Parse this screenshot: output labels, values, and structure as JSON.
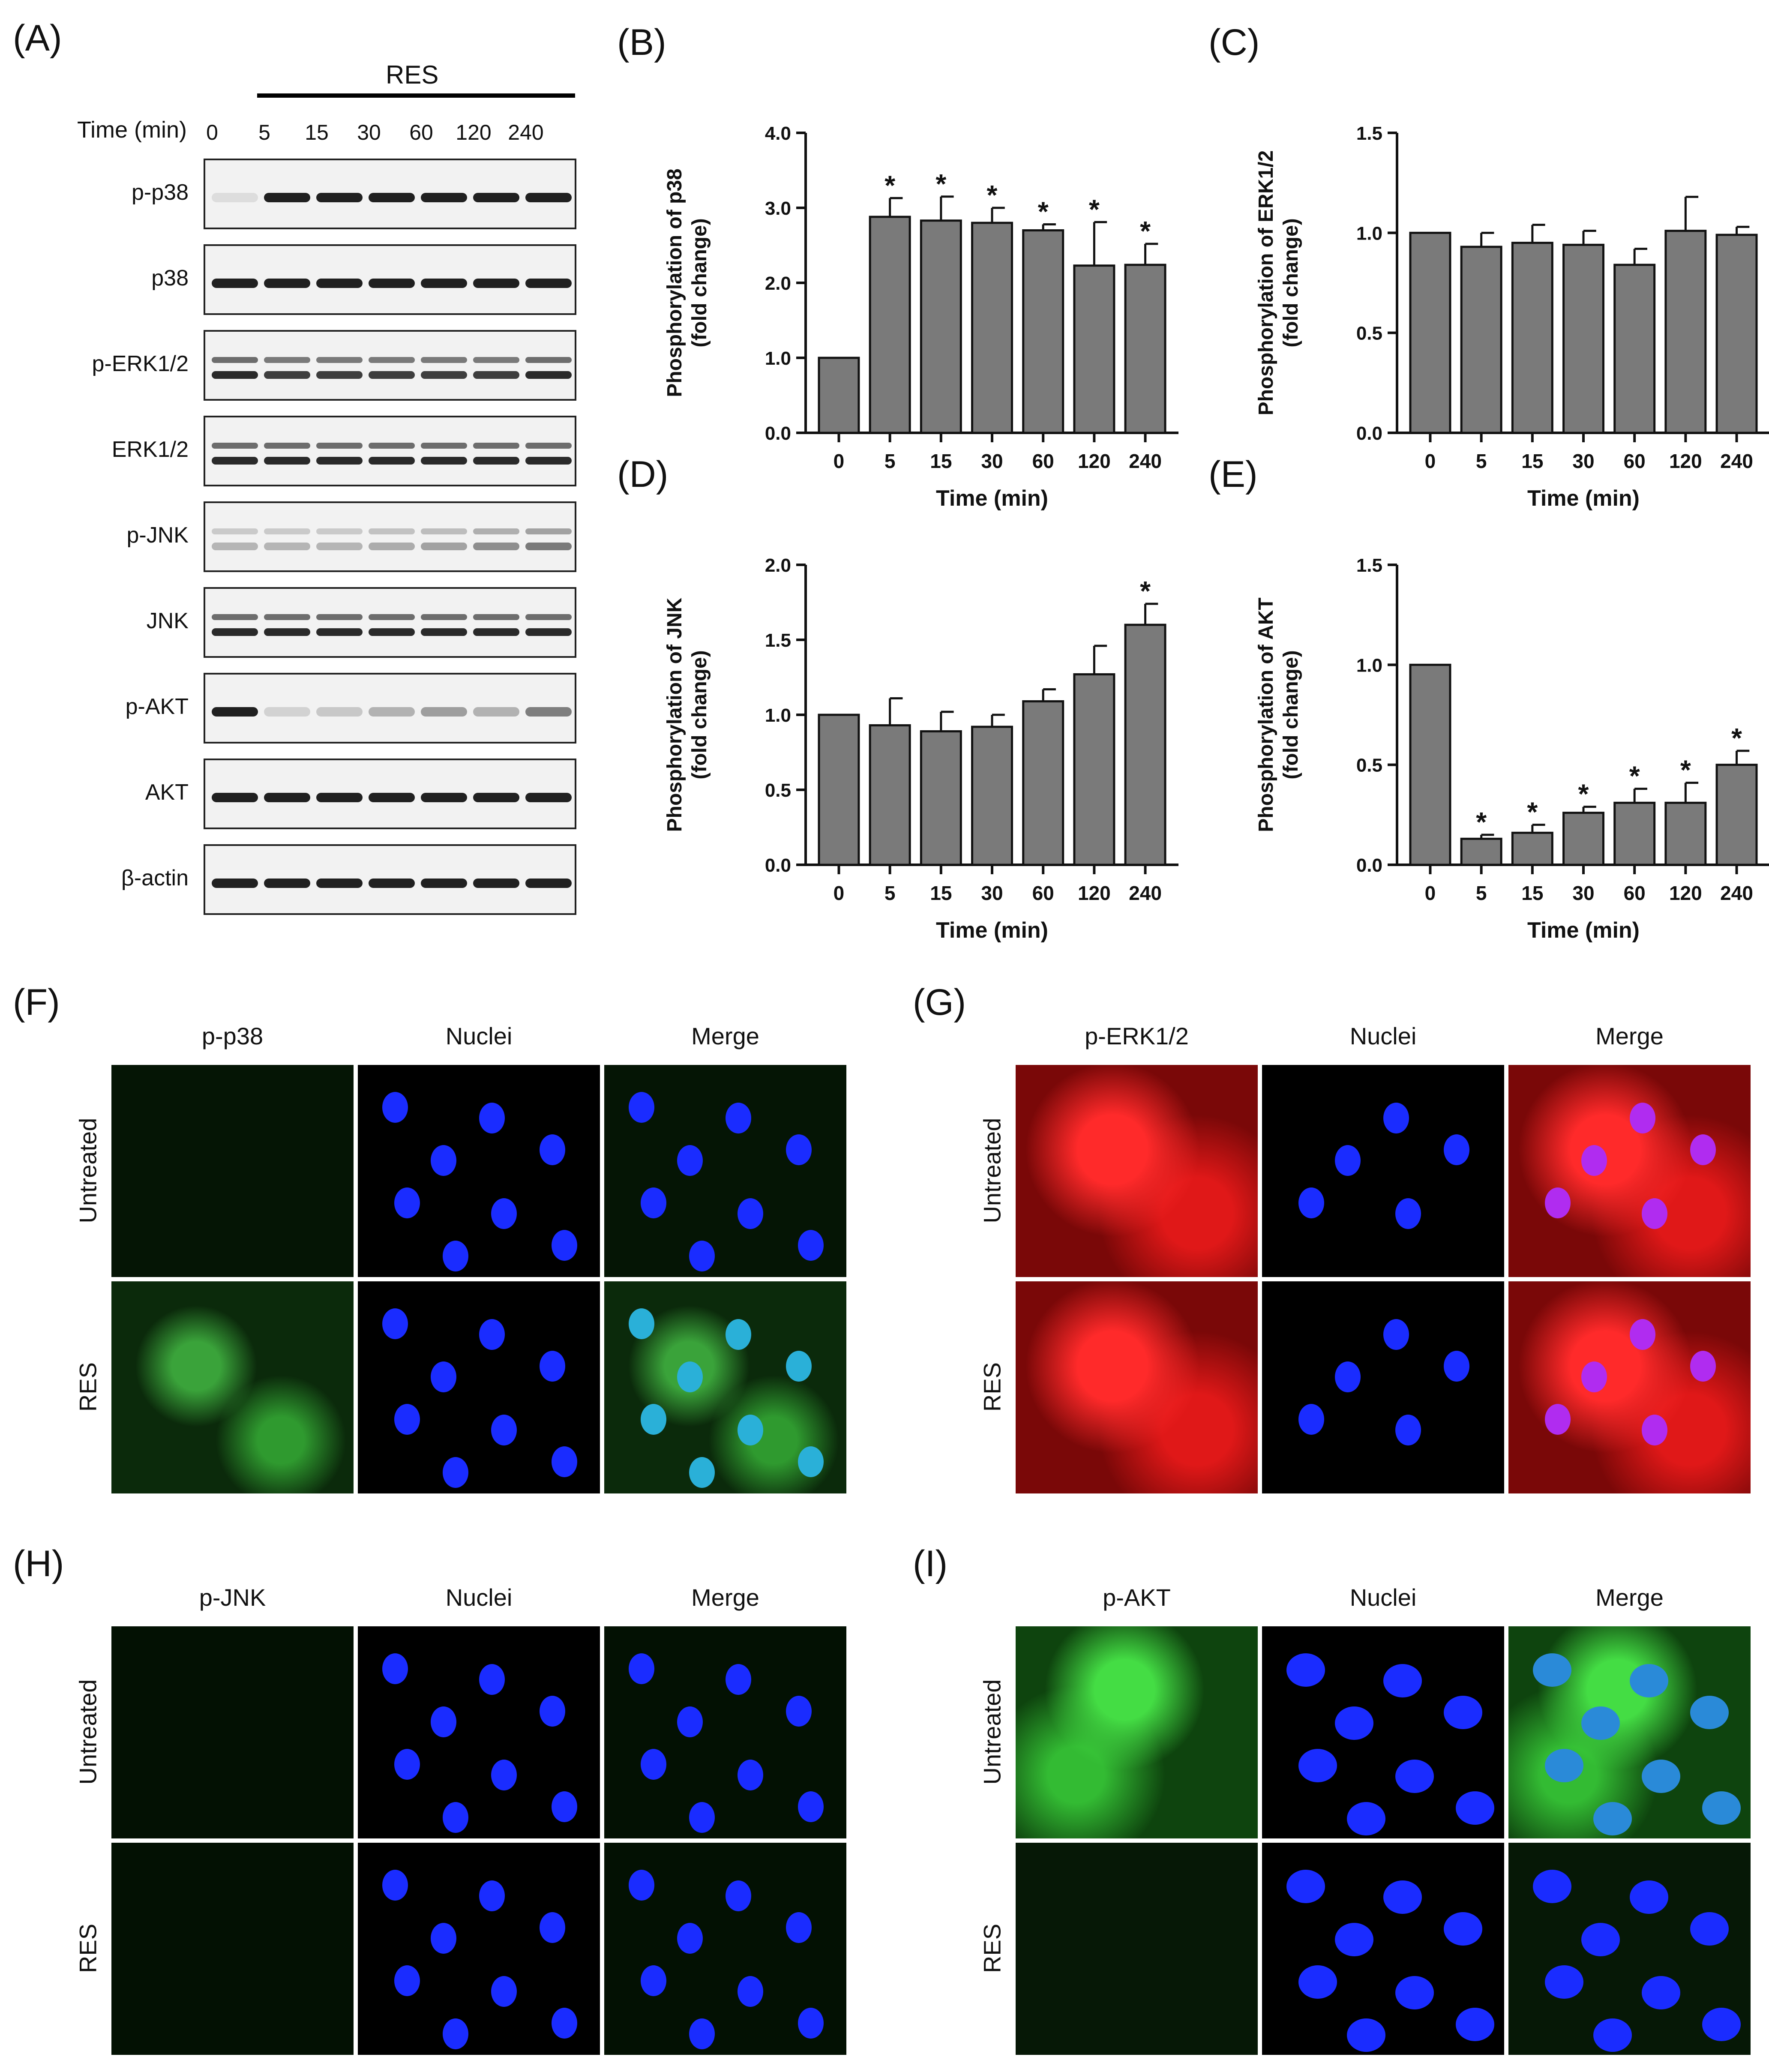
{
  "panels": {
    "A": {
      "label": "(A)",
      "treatment": "RES",
      "time_header": "Time (min)",
      "lanes": [
        "0",
        "5",
        "15",
        "30",
        "60",
        "120",
        "240"
      ],
      "blots": [
        {
          "name": "p-p38",
          "bands": [
            0.1,
            1,
            1,
            1,
            1,
            1,
            1
          ],
          "double": false
        },
        {
          "name": "p38",
          "bands": [
            1,
            1,
            1,
            1,
            1,
            1,
            1
          ],
          "double": false
        },
        {
          "name": "p-ERK1/2",
          "bands": [
            1,
            0.9,
            0.9,
            0.9,
            0.9,
            0.9,
            1
          ],
          "double": true
        },
        {
          "name": "ERK1/2",
          "bands": [
            1,
            1,
            1,
            1,
            1,
            1,
            1
          ],
          "double": true
        },
        {
          "name": "p-JNK",
          "bands": [
            0.3,
            0.3,
            0.3,
            0.35,
            0.4,
            0.5,
            0.6
          ],
          "double": true
        },
        {
          "name": "JNK",
          "bands": [
            1,
            1,
            1,
            1,
            1,
            1,
            1
          ],
          "double": true
        },
        {
          "name": "p-AKT",
          "bands": [
            1,
            0.15,
            0.2,
            0.3,
            0.4,
            0.3,
            0.55
          ],
          "double": false
        },
        {
          "name": "AKT",
          "bands": [
            1,
            1,
            1,
            1,
            1,
            1,
            1
          ],
          "double": false
        },
        {
          "name": "β-actin",
          "bands": [
            1,
            1,
            1,
            1,
            1,
            1,
            1
          ],
          "double": false
        }
      ]
    },
    "F": {
      "label": "(F)",
      "columns": [
        "p-p38",
        "Nuclei",
        "Merge"
      ],
      "rows": [
        "Untreated",
        "RES"
      ],
      "stain_color": "#22cc22"
    },
    "G": {
      "label": "(G)",
      "columns": [
        "p-ERK1/2",
        "Nuclei",
        "Merge"
      ],
      "rows": [
        "Untreated",
        "RES"
      ],
      "stain_color": "#ee1111"
    },
    "H": {
      "label": "(H)",
      "columns": [
        "p-JNK",
        "Nuclei",
        "Merge"
      ],
      "rows": [
        "Untreated",
        "RES"
      ],
      "stain_color": "#22aa22"
    },
    "I": {
      "label": "(I)",
      "columns": [
        "p-AKT",
        "Nuclei",
        "Merge"
      ],
      "rows": [
        "Untreated",
        "RES"
      ],
      "stain_color": "#22cc22"
    }
  },
  "chart_data": [
    {
      "panel": "(B)",
      "type": "bar",
      "categories": [
        "0",
        "5",
        "15",
        "30",
        "60",
        "120",
        "240"
      ],
      "values": [
        1.0,
        2.88,
        2.83,
        2.8,
        2.7,
        2.23,
        2.24
      ],
      "errors": [
        0,
        0.25,
        0.32,
        0.2,
        0.08,
        0.58,
        0.28
      ],
      "significant": [
        false,
        true,
        true,
        true,
        true,
        true,
        true
      ],
      "ylabel": "Phosphorylation of p38\n(fold change)",
      "xlabel": "Time (min)",
      "ylim": [
        0,
        4.0
      ],
      "yticks": [
        "0.0",
        "1.0",
        "2.0",
        "3.0",
        "4.0"
      ],
      "bar_color": "#7a7a7a"
    },
    {
      "panel": "(C)",
      "type": "bar",
      "categories": [
        "0",
        "5",
        "15",
        "30",
        "60",
        "120",
        "240"
      ],
      "values": [
        1.0,
        0.93,
        0.95,
        0.94,
        0.84,
        1.01,
        0.99
      ],
      "errors": [
        0,
        0.07,
        0.09,
        0.07,
        0.08,
        0.17,
        0.04
      ],
      "significant": [
        false,
        false,
        false,
        false,
        false,
        false,
        false
      ],
      "ylabel": "Phosphorylation of ERK1/2\n(fold change)",
      "xlabel": "Time (min)",
      "ylim": [
        0,
        1.5
      ],
      "yticks": [
        "0.0",
        "0.5",
        "1.0",
        "1.5"
      ],
      "bar_color": "#7a7a7a"
    },
    {
      "panel": "(D)",
      "type": "bar",
      "categories": [
        "0",
        "5",
        "15",
        "30",
        "60",
        "120",
        "240"
      ],
      "values": [
        1.0,
        0.93,
        0.89,
        0.92,
        1.09,
        1.27,
        1.6
      ],
      "errors": [
        0,
        0.18,
        0.13,
        0.08,
        0.08,
        0.19,
        0.14
      ],
      "significant": [
        false,
        false,
        false,
        false,
        false,
        false,
        true
      ],
      "ylabel": "Phosphorylation of JNK\n(fold change)",
      "xlabel": "Time (min)",
      "ylim": [
        0,
        2.0
      ],
      "yticks": [
        "0.0",
        "0.5",
        "1.0",
        "1.5",
        "2.0"
      ],
      "bar_color": "#7a7a7a"
    },
    {
      "panel": "(E)",
      "type": "bar",
      "categories": [
        "0",
        "5",
        "15",
        "30",
        "60",
        "120",
        "240"
      ],
      "values": [
        1.0,
        0.13,
        0.16,
        0.26,
        0.31,
        0.31,
        0.5
      ],
      "errors": [
        0,
        0.02,
        0.04,
        0.03,
        0.07,
        0.1,
        0.07
      ],
      "significant": [
        false,
        true,
        true,
        true,
        true,
        true,
        true
      ],
      "ylabel": "Phosphorylation of AKT\n(fold change)",
      "xlabel": "Time (min)",
      "ylim": [
        0,
        1.5
      ],
      "yticks": [
        "0.0",
        "0.5",
        "1.0",
        "1.5"
      ],
      "bar_color": "#7a7a7a"
    }
  ]
}
